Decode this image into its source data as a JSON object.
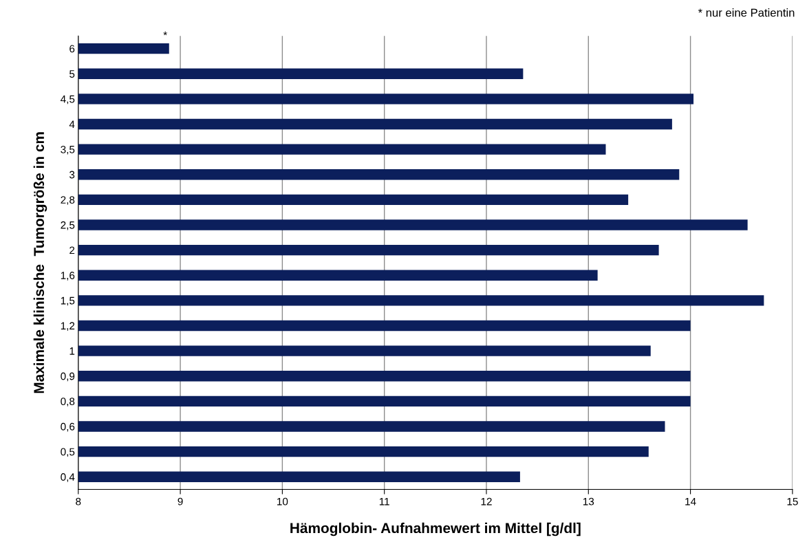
{
  "chart_data": {
    "type": "bar",
    "orientation": "horizontal",
    "xlabel": "Hämoglobin- Aufnahmewert im Mittel [g/dl]",
    "ylabel": "Maximale klinische  Tumorgröße in cm",
    "categories": [
      "6",
      "5",
      "4,5",
      "4",
      "3,5",
      "3",
      "2,8",
      "2,5",
      "2",
      "1,6",
      "1,5",
      "1,2",
      "1",
      "0,9",
      "0,8",
      "0,6",
      "0,5",
      "0,4"
    ],
    "values": [
      8.89,
      12.36,
      14.03,
      13.82,
      13.17,
      13.89,
      13.39,
      14.56,
      13.69,
      13.09,
      14.72,
      14.0,
      13.61,
      14.0,
      14.0,
      13.75,
      13.59,
      12.33
    ],
    "color": "#0c1f5c",
    "xlim": [
      8,
      15
    ],
    "xticks": [
      8,
      9,
      10,
      11,
      12,
      13,
      14,
      15
    ],
    "grid": "x",
    "legend": false,
    "annotations": [
      {
        "text": "*",
        "x": 8.89,
        "y": "6"
      },
      "* nur eine Patientin"
    ]
  }
}
